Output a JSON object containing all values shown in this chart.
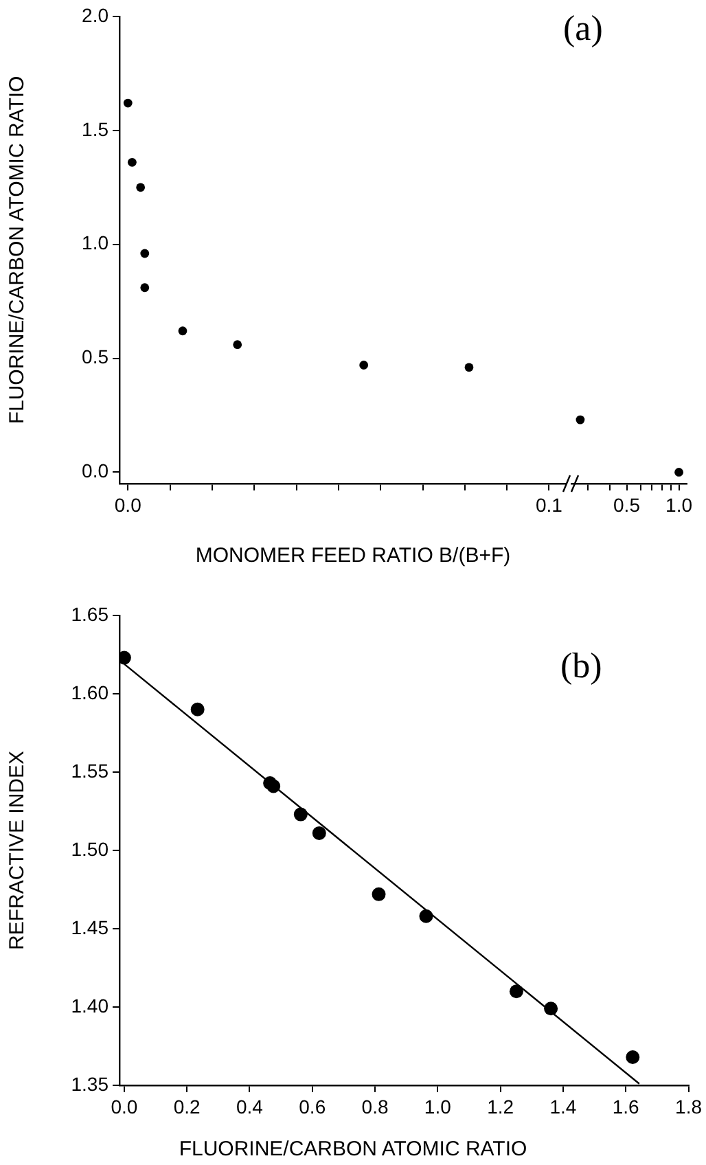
{
  "chart_data": [
    {
      "type": "scatter",
      "xlabel": "MONOMER FEED RATIO B/(B+F)",
      "ylabel": "FLUORINE/CARBON ATOMIC RATIO",
      "annotations": [
        "(a)"
      ],
      "marker": "circle",
      "x": [
        0,
        0.001,
        0.003,
        0.004,
        0.004,
        0.013,
        0.026,
        0.056,
        0.081
      ],
      "series": [
        {
          "color": "#000000",
          "values": [
            1.62,
            1.36,
            1.25,
            0.96,
            0.81,
            0.62,
            0.56,
            0.47,
            0.46
          ]
        }
      ],
      "xlim": [
        -0.002,
        0.104
      ],
      "ylim": [
        -0.05,
        2.0
      ],
      "xticks": [
        {
          "value": 0,
          "label": "0.0"
        },
        {
          "value": 0.01,
          "label": null
        },
        {
          "value": 0.02,
          "label": null
        },
        {
          "value": 0.03,
          "label": null
        },
        {
          "value": 0.04,
          "label": null
        },
        {
          "value": 0.05,
          "label": null
        },
        {
          "value": 0.06,
          "label": null
        },
        {
          "value": 0.07,
          "label": null
        },
        {
          "value": 0.08,
          "label": null
        },
        {
          "value": 0.09,
          "label": null
        },
        0.1
      ],
      "yticks": [
        {
          "value": 0,
          "label": "0.0"
        },
        0.5,
        {
          "value": 1,
          "label": "1.0"
        },
        1.5,
        {
          "value": 2,
          "label": "2.0"
        }
      ]
    },
    {
      "type": "scatter",
      "marker": "circle",
      "log": "x",
      "tick_labels": "x",
      "x": [
        0.27,
        1.0
      ],
      "series": [
        {
          "color": "#000000",
          "values": [
            0.23,
            0.0
          ]
        }
      ],
      "xlim": [
        0.24,
        1.11
      ],
      "ylim": [
        -0.05,
        2.0
      ],
      "xticks": [
        {
          "value": 0.3,
          "label": null
        },
        {
          "value": 0.4,
          "label": null
        },
        0.5,
        {
          "value": 0.6,
          "label": null
        },
        {
          "value": 0.7,
          "label": null
        },
        {
          "value": 0.8,
          "label": null
        },
        {
          "value": 0.9,
          "label": null
        },
        {
          "value": 1,
          "label": "1.0"
        }
      ]
    },
    {
      "type": "scatter",
      "xlabel": "FLUORINE/CARBON ATOMIC RATIO",
      "ylabel": "REFRACTIVE INDEX",
      "annotations": [
        "(b)"
      ],
      "marker": "circle",
      "series": [
        {
          "color": "#000000",
          "x": [
            0,
            0.234,
            0.465,
            0.476,
            0.563,
            0.622,
            0.812,
            0.963,
            1.251,
            1.361,
            1.622
          ],
          "values": [
            1.623,
            1.59,
            1.543,
            1.541,
            1.523,
            1.511,
            1.472,
            1.458,
            1.41,
            1.399,
            1.368
          ]
        },
        {
          "type": "line",
          "marker": "none",
          "color": "#000000",
          "x": [
            0,
            1.643
          ],
          "values": [
            1.619,
            1.351
          ]
        }
      ],
      "xlim": [
        -0.015,
        1.8
      ],
      "ylim": [
        1.35,
        1.65
      ],
      "xticks": [
        {
          "value": 0,
          "label": "0.0"
        },
        0.2,
        0.4,
        0.6,
        0.8,
        {
          "value": 1,
          "label": "1.0"
        },
        1.2,
        1.4,
        1.6,
        1.8
      ],
      "yticks": [
        1.35,
        {
          "value": 1.4,
          "label": "1.40"
        },
        1.45,
        {
          "value": 1.5,
          "label": "1.50"
        },
        1.55,
        {
          "value": 1.6,
          "label": "1.60"
        },
        1.65
      ]
    }
  ]
}
